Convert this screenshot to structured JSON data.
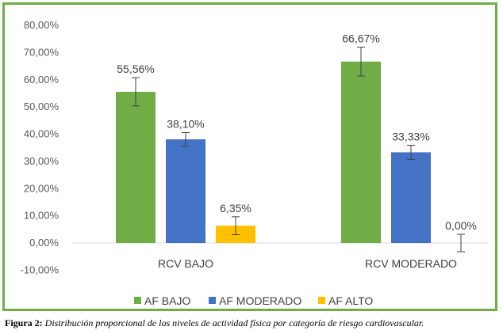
{
  "chart_data": {
    "type": "bar",
    "categories": [
      "RCV BAJO",
      "RCV MODERADO"
    ],
    "series": [
      {
        "name": "AF BAJO",
        "color": "#70ad47",
        "values": [
          55.56,
          66.67
        ],
        "labels": [
          "55,56%",
          "66,67%"
        ],
        "errors": [
          5.2,
          5.3
        ]
      },
      {
        "name": "AF MODERADO",
        "color": "#4472c4",
        "values": [
          38.1,
          33.33
        ],
        "labels": [
          "38,10%",
          "33,33%"
        ],
        "errors": [
          2.5,
          2.6
        ]
      },
      {
        "name": "AF ALTO",
        "color": "#ffc000",
        "values": [
          6.35,
          0.0
        ],
        "labels": [
          "6,35%",
          "0,00%"
        ],
        "errors": [
          3.3,
          3.2
        ]
      }
    ],
    "ylim": [
      -10,
      80
    ],
    "yticks": [
      -10,
      0,
      10,
      20,
      30,
      40,
      50,
      60,
      70,
      80
    ],
    "ytick_labels": [
      "-10,00%",
      "0,00%",
      "10,00%",
      "20,00%",
      "30,00%",
      "40,00%",
      "50,00%",
      "60,00%",
      "70,00%",
      "80,00%"
    ],
    "grid": false,
    "legend_position": "bottom",
    "error_bars": true
  },
  "caption": {
    "label": "Figura 2:",
    "text": "Distribución proporcional de los niveles de actividad física por categoría de riesgo cardiovascular."
  }
}
